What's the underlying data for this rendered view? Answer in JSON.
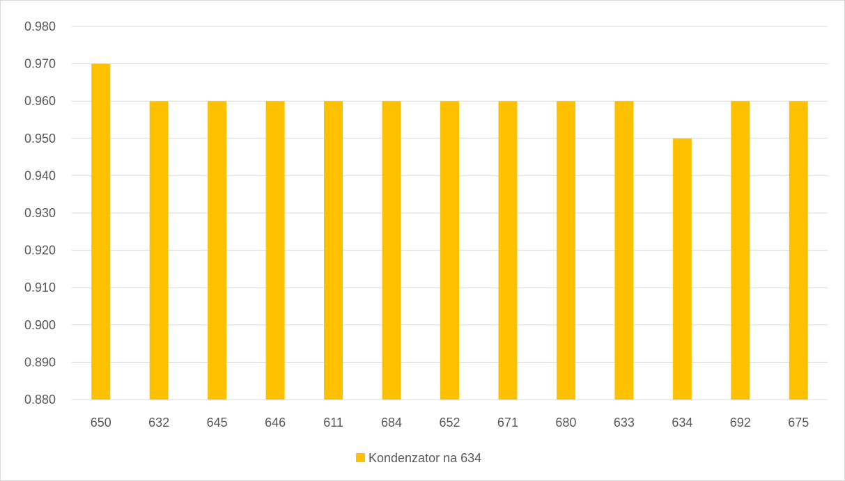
{
  "chart_data": {
    "type": "bar",
    "title": "",
    "xlabel": "",
    "ylabel": "",
    "categories": [
      "650",
      "632",
      "645",
      "646",
      "611",
      "684",
      "652",
      "671",
      "680",
      "633",
      "634",
      "692",
      "675"
    ],
    "series": [
      {
        "name": "Kondenzator na 634",
        "color": "#FFC000",
        "values": [
          0.97,
          0.96,
          0.96,
          0.96,
          0.96,
          0.96,
          0.96,
          0.96,
          0.96,
          0.96,
          0.95,
          0.96,
          0.96
        ]
      }
    ],
    "ylim": [
      0.88,
      0.98
    ],
    "yticks": [
      "0.880",
      "0.890",
      "0.900",
      "0.910",
      "0.920",
      "0.930",
      "0.940",
      "0.950",
      "0.960",
      "0.970",
      "0.980"
    ],
    "grid": true,
    "legend_position": "bottom"
  },
  "colors": {
    "gridline": "#d9d9d9",
    "axis_text": "#595959"
  }
}
